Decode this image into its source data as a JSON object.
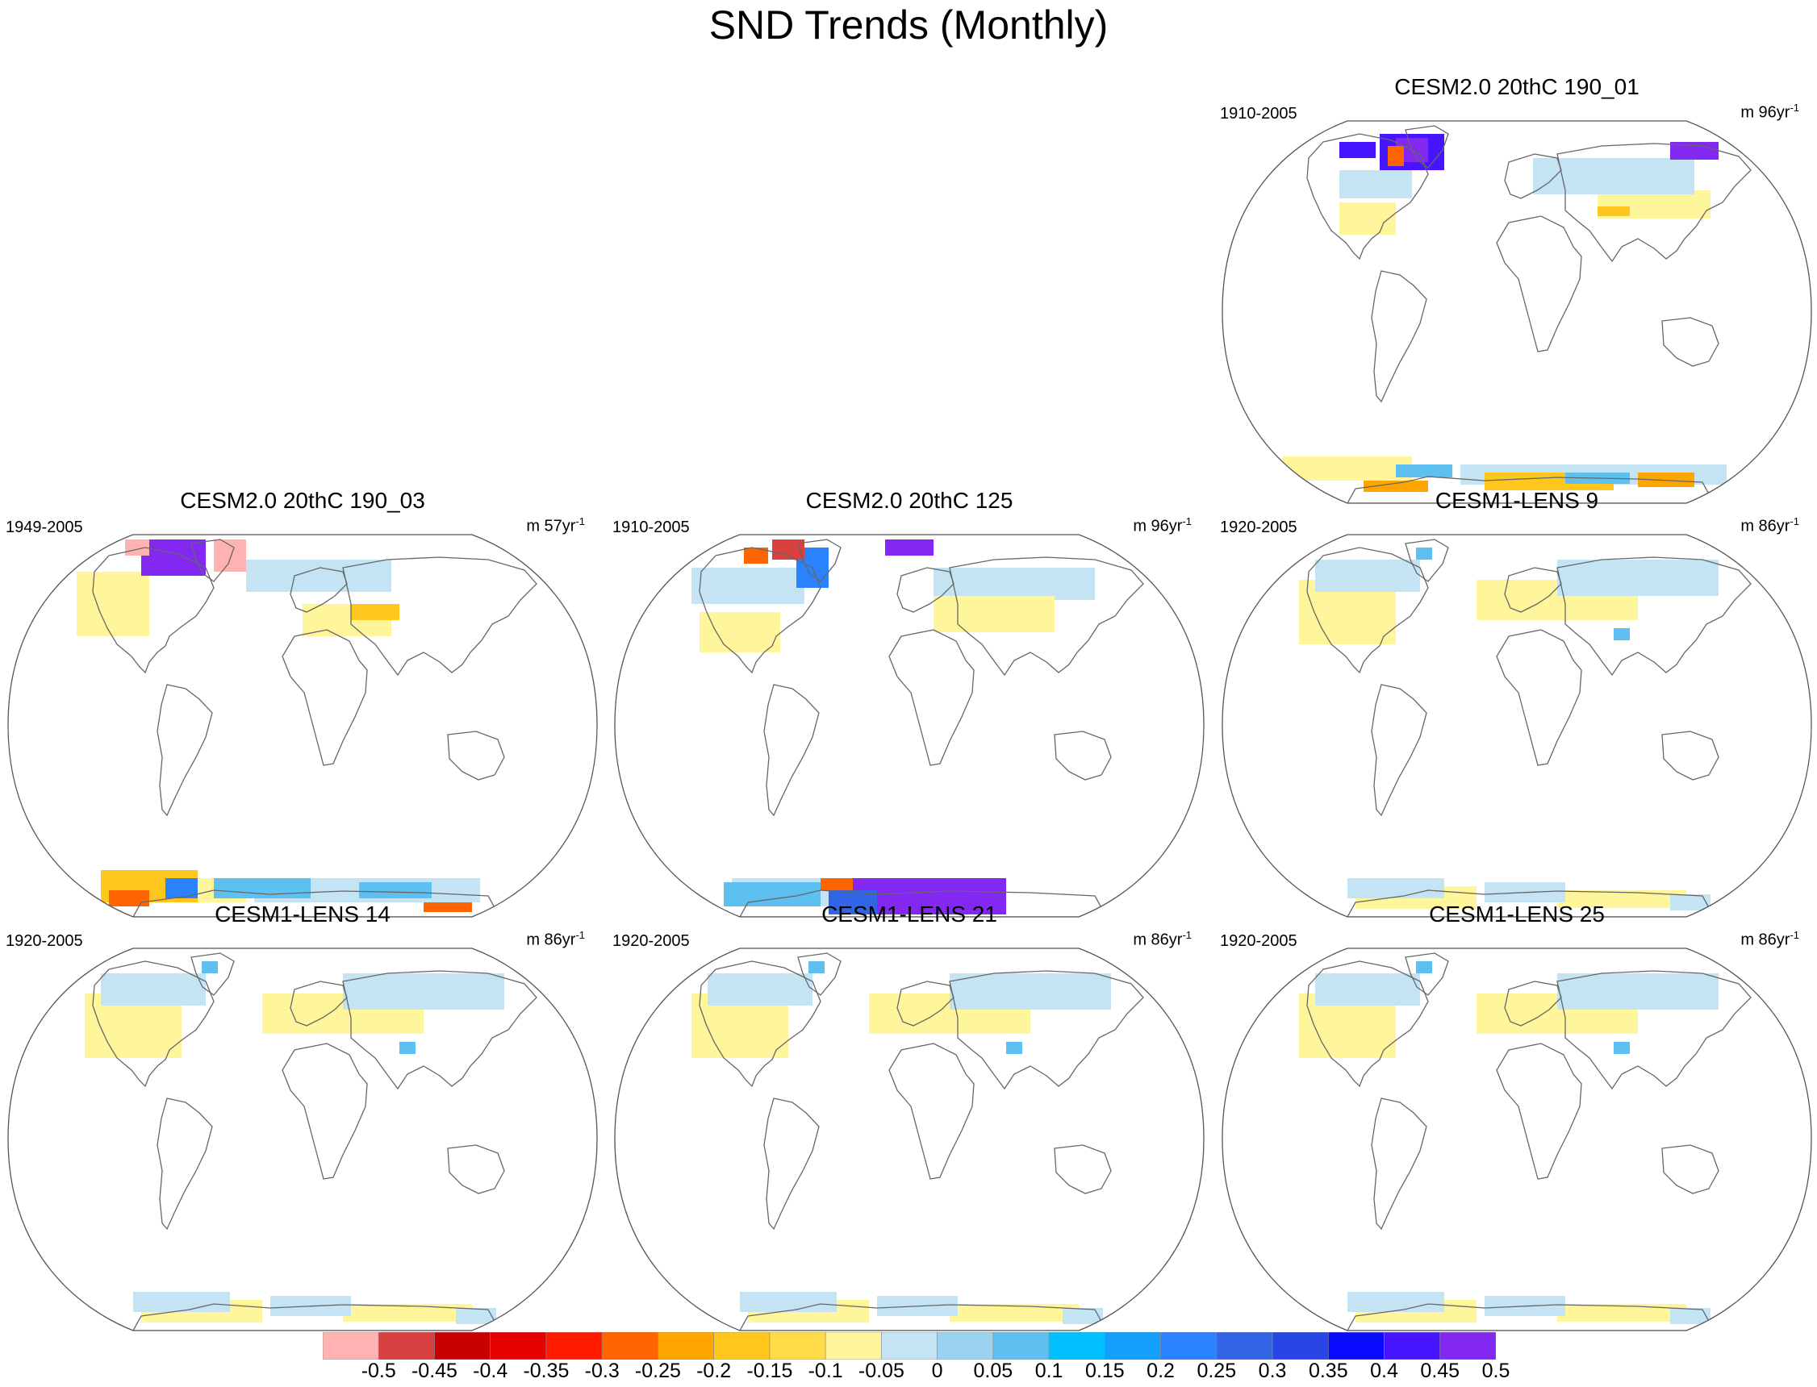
{
  "figure": {
    "title": "SND Trends (Monthly)"
  },
  "panels": [
    {
      "id": "p1",
      "title": "CESM2.0 20thC 190_01",
      "period": "1910-2005",
      "units_prefix": "m 96yr",
      "units_exp": "-1",
      "row": 0,
      "col": 2,
      "pattern": "strong"
    },
    {
      "id": "p2",
      "title": "CESM2.0 20thC 190_03",
      "period": "1949-2005",
      "units_prefix": "m 57yr",
      "units_exp": "-1",
      "row": 1,
      "col": 0,
      "pattern": "strong2"
    },
    {
      "id": "p3",
      "title": "CESM2.0 20thC 125",
      "period": "1910-2005",
      "units_prefix": "m 96yr",
      "units_exp": "-1",
      "row": 1,
      "col": 1,
      "pattern": "strong3"
    },
    {
      "id": "p4",
      "title": "CESM1-LENS 9",
      "period": "1920-2005",
      "units_prefix": "m 86yr",
      "units_exp": "-1",
      "row": 1,
      "col": 2,
      "pattern": "weak"
    },
    {
      "id": "p5",
      "title": "CESM1-LENS 14",
      "period": "1920-2005",
      "units_prefix": "m 86yr",
      "units_exp": "-1",
      "row": 2,
      "col": 0,
      "pattern": "weak"
    },
    {
      "id": "p6",
      "title": "CESM1-LENS 21",
      "period": "1920-2005",
      "units_prefix": "m 86yr",
      "units_exp": "-1",
      "row": 2,
      "col": 1,
      "pattern": "weak"
    },
    {
      "id": "p7",
      "title": "CESM1-LENS 25",
      "period": "1920-2005",
      "units_prefix": "m 86yr",
      "units_exp": "-1",
      "row": 2,
      "col": 2,
      "pattern": "weak"
    }
  ],
  "colorbar": {
    "labels": [
      "-0.5",
      "-0.45",
      "-0.4",
      "-0.35",
      "-0.3",
      "-0.25",
      "-0.2",
      "-0.15",
      "-0.1",
      "-0.05",
      "0",
      "0.05",
      "0.1",
      "0.15",
      "0.2",
      "0.25",
      "0.3",
      "0.35",
      "0.4",
      "0.45",
      "0.5"
    ],
    "colors": [
      "#ffb2b2",
      "#d94040",
      "#c80000",
      "#e80000",
      "#ff1a00",
      "#ff6400",
      "#ffa500",
      "#ffc61e",
      "#ffdc46",
      "#fff59a",
      "#c4e4f4",
      "#9ad2ef",
      "#5ec0f0",
      "#00c0ff",
      "#14a0ff",
      "#2a82ff",
      "#3264e6",
      "#2846e6",
      "#0a0aff",
      "#4614ff",
      "#8228f0"
    ]
  }
}
